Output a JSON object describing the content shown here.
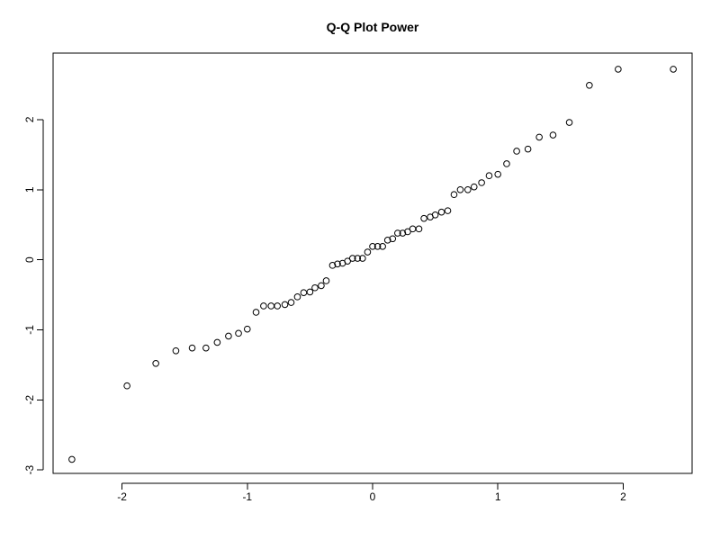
{
  "chart_data": {
    "type": "scatter",
    "title": "Q-Q Plot Power",
    "xlabel": "",
    "ylabel": "",
    "xlim": [
      -2.55,
      2.55
    ],
    "ylim": [
      -3.05,
      2.95
    ],
    "x_ticks": [
      -2,
      -1,
      0,
      1,
      2
    ],
    "x_tick_labels": [
      "-2",
      "-1",
      "0",
      "1",
      "2"
    ],
    "y_ticks": [
      -3,
      -2,
      -1,
      0,
      1,
      2
    ],
    "y_tick_labels": [
      "-3",
      "-2",
      "-1",
      "0",
      "1",
      "2"
    ],
    "grid": false,
    "legend": "none",
    "series": [
      {
        "x": [
          -2.4,
          -1.96,
          -1.73,
          -1.57,
          -1.44,
          -1.33,
          -1.24,
          -1.15,
          -1.07,
          -1.0,
          -0.93,
          -0.87,
          -0.81,
          -0.76,
          -0.7,
          -0.65,
          -0.6,
          -0.55,
          -0.5,
          -0.46,
          -0.41,
          -0.37,
          -0.32,
          -0.28,
          -0.24,
          -0.2,
          -0.16,
          -0.12,
          -0.08,
          -0.04,
          0.0,
          0.04,
          0.08,
          0.12,
          0.16,
          0.2,
          0.24,
          0.28,
          0.32,
          0.37,
          0.41,
          0.46,
          0.5,
          0.55,
          0.6,
          0.65,
          0.7,
          0.76,
          0.81,
          0.87,
          0.93,
          1.0,
          1.07,
          1.15,
          1.24,
          1.33,
          1.44,
          1.57,
          1.73,
          1.96,
          2.4
        ],
        "y": [
          -2.85,
          -1.8,
          -1.48,
          -1.3,
          -1.26,
          -1.26,
          -1.18,
          -1.09,
          -1.05,
          -0.99,
          -0.75,
          -0.66,
          -0.66,
          -0.66,
          -0.64,
          -0.61,
          -0.53,
          -0.47,
          -0.46,
          -0.4,
          -0.37,
          -0.3,
          -0.08,
          -0.06,
          -0.05,
          -0.02,
          0.02,
          0.02,
          0.02,
          0.11,
          0.19,
          0.19,
          0.19,
          0.28,
          0.3,
          0.38,
          0.38,
          0.4,
          0.44,
          0.44,
          0.59,
          0.61,
          0.64,
          0.68,
          0.7,
          0.93,
          1.0,
          1.0,
          1.04,
          1.1,
          1.2,
          1.22,
          1.37,
          1.55,
          1.58,
          1.75,
          1.78,
          1.96,
          2.49,
          2.72,
          2.72
        ]
      }
    ]
  }
}
